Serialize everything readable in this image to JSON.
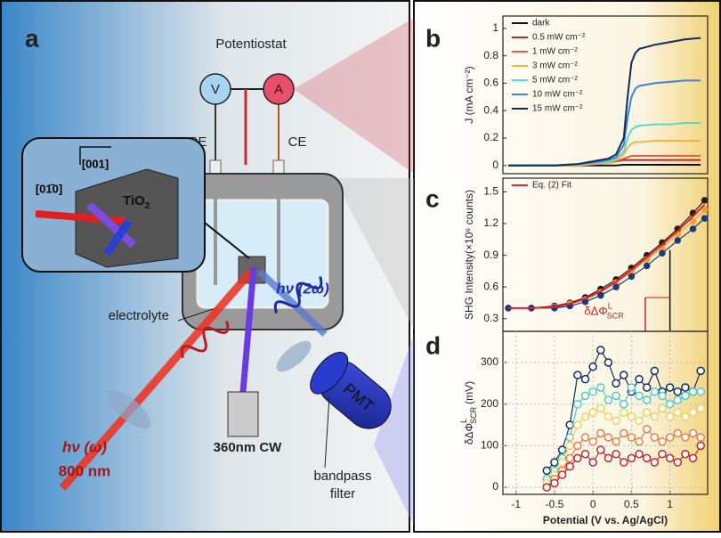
{
  "diagram": {
    "panel": "a",
    "title": "Potentiostat",
    "voltmeter": "V",
    "ammeter": "A",
    "re": "RE",
    "ce": "CE",
    "axis1": "[001]",
    "axis2": "[01̄0]",
    "sample": {
      "text": "TiO",
      "sub": "2"
    },
    "electrolyte": "electrolyte",
    "probe": "hν (2ω)",
    "pump": "hν (ω)",
    "wavelength": "800 nm",
    "lamp": "360nm CW",
    "detector": "PMT",
    "filter": [
      "bandpass",
      "filter"
    ]
  },
  "chart_data": [
    {
      "type": "line",
      "panel": "b",
      "ylabel": "J (mA cm⁻²)",
      "x": [
        -1.1,
        -0.5,
        -0.2,
        0.0,
        0.2,
        0.3,
        0.4,
        0.45,
        0.5,
        0.55,
        0.6,
        0.8,
        1.0,
        1.2,
        1.4
      ],
      "xlim": [
        -1.17,
        1.49
      ],
      "ylim": [
        -0.06,
        1.09
      ],
      "yticks": [
        0.0,
        0.2,
        0.4,
        0.6,
        0.8,
        1.0
      ],
      "series": [
        {
          "name": "dark",
          "color": "#111111",
          "values": [
            0,
            0,
            0,
            0,
            0,
            0,
            0.005,
            0.005,
            0.005,
            0.005,
            0.005,
            0.005,
            0.005,
            0.005,
            0.005
          ]
        },
        {
          "name": "0.5 mW cm⁻²",
          "color": "#b8282c",
          "values": [
            0,
            0,
            0,
            0.01,
            0.02,
            0.03,
            0.04,
            0.04,
            0.04,
            0.04,
            0.04,
            0.04,
            0.04,
            0.04,
            0.04
          ]
        },
        {
          "name": "1 mW cm⁻²",
          "color": "#e2603c",
          "values": [
            0,
            0,
            0,
            0.01,
            0.02,
            0.03,
            0.05,
            0.06,
            0.07,
            0.07,
            0.07,
            0.07,
            0.07,
            0.07,
            0.07
          ]
        },
        {
          "name": "3 mW cm⁻²",
          "color": "#f3b447",
          "values": [
            0,
            0,
            0,
            0.01,
            0.02,
            0.04,
            0.08,
            0.13,
            0.16,
            0.17,
            0.17,
            0.18,
            0.18,
            0.18,
            0.18
          ]
        },
        {
          "name": "5 mW cm⁻²",
          "color": "#56dcc3",
          "values": [
            0,
            0,
            0.01,
            0.02,
            0.03,
            0.05,
            0.1,
            0.2,
            0.26,
            0.28,
            0.29,
            0.3,
            0.3,
            0.31,
            0.31
          ]
        },
        {
          "name": "10 mW cm⁻²",
          "color": "#3f82d6",
          "values": [
            0,
            0,
            0.01,
            0.02,
            0.04,
            0.06,
            0.15,
            0.35,
            0.5,
            0.56,
            0.58,
            0.6,
            0.61,
            0.62,
            0.62
          ]
        },
        {
          "name": "15 mW cm⁻²",
          "color": "#0e2b5e",
          "values": [
            0,
            0,
            0.01,
            0.03,
            0.05,
            0.08,
            0.2,
            0.5,
            0.75,
            0.82,
            0.85,
            0.88,
            0.9,
            0.92,
            0.93
          ]
        }
      ]
    },
    {
      "type": "line",
      "panel": "c",
      "ylabel": "SHG Intensity(×10⁶ counts)",
      "x": [
        -1.1,
        -0.8,
        -0.5,
        -0.3,
        -0.1,
        0.1,
        0.3,
        0.5,
        0.7,
        0.9,
        1.1,
        1.3,
        1.45
      ],
      "xlim": [
        -1.17,
        1.49
      ],
      "ylim": [
        0.18,
        1.63
      ],
      "yticks": [
        0.3,
        0.6,
        0.9,
        1.2,
        1.5
      ],
      "annotation": {
        "base": "δΔΦ",
        "sup": "L",
        "sub": "SCR"
      },
      "series": [
        {
          "color": "#2a1a1a",
          "markers": true,
          "values": [
            0.4,
            0.4,
            0.42,
            0.45,
            0.5,
            0.58,
            0.67,
            0.78,
            0.9,
            1.02,
            1.15,
            1.3,
            1.42
          ]
        },
        {
          "color": "#f0a040",
          "markers": true,
          "values": [
            0.4,
            0.4,
            0.41,
            0.44,
            0.48,
            0.55,
            0.64,
            0.74,
            0.86,
            0.97,
            1.1,
            1.22,
            1.33
          ]
        },
        {
          "color": "#1a3a7a",
          "markers": true,
          "values": [
            0.4,
            0.4,
            0.4,
            0.42,
            0.46,
            0.52,
            0.6,
            0.7,
            0.8,
            0.92,
            1.04,
            1.15,
            1.25
          ]
        },
        {
          "name": "Eq. (2)  Fit",
          "color": "#e0202a",
          "values": [
            0.4,
            0.4,
            0.41,
            0.44,
            0.49,
            0.56,
            0.65,
            0.76,
            0.88,
            1.0,
            1.13,
            1.27,
            1.38
          ]
        }
      ]
    },
    {
      "type": "line",
      "panel": "d",
      "ylabel": "δΔΦ",
      "ylabel_sup": "L",
      "ylabel_sub": "SCR",
      "ylabel_unit": "(mV)",
      "xlabel": "Potential (V vs. Ag/AgCl)",
      "grid": true,
      "x": [
        -0.6,
        -0.5,
        -0.4,
        -0.3,
        -0.2,
        -0.1,
        0.0,
        0.1,
        0.2,
        0.3,
        0.4,
        0.5,
        0.6,
        0.7,
        0.8,
        0.9,
        1.0,
        1.1,
        1.2,
        1.3,
        1.4
      ],
      "xlim": [
        -1.17,
        1.49
      ],
      "ylim": [
        -17,
        375
      ],
      "xticks": [
        -1.0,
        -0.5,
        0.0,
        0.5,
        1.0
      ],
      "yticks": [
        0,
        100,
        200,
        300
      ],
      "series": [
        {
          "color": "#0e2b5e",
          "markers": true,
          "values": [
            40,
            60,
            90,
            150,
            270,
            260,
            290,
            330,
            300,
            250,
            270,
            230,
            260,
            240,
            280,
            230,
            240,
            230,
            240,
            230,
            280
          ]
        },
        {
          "color": "#56c8c3",
          "markers": true,
          "values": [
            20,
            40,
            70,
            120,
            200,
            220,
            230,
            240,
            210,
            220,
            200,
            240,
            220,
            210,
            230,
            220,
            200,
            210,
            220,
            230,
            230
          ]
        },
        {
          "color": "#f3d060",
          "markers": true,
          "values": [
            10,
            30,
            60,
            100,
            150,
            170,
            180,
            190,
            170,
            160,
            180,
            170,
            160,
            180,
            170,
            190,
            170,
            180,
            170,
            180,
            190
          ]
        },
        {
          "color": "#e8804a",
          "markers": true,
          "values": [
            0,
            20,
            40,
            70,
            100,
            120,
            110,
            130,
            120,
            110,
            130,
            120,
            110,
            140,
            120,
            110,
            120,
            130,
            120,
            130,
            120
          ]
        },
        {
          "color": "#c0282c",
          "markers": true,
          "values": [
            0,
            10,
            30,
            50,
            70,
            80,
            60,
            90,
            70,
            80,
            60,
            70,
            80,
            70,
            60,
            80,
            70,
            60,
            80,
            70,
            100
          ]
        }
      ]
    }
  ]
}
